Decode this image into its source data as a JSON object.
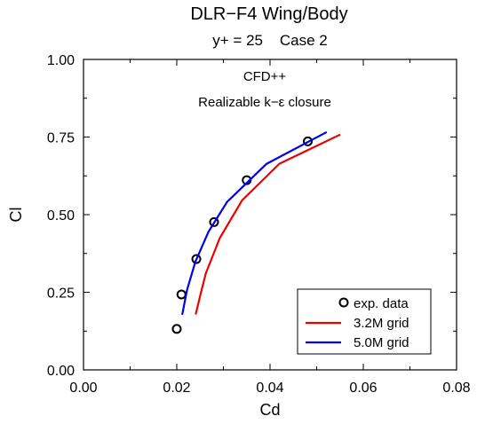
{
  "chart_data": {
    "type": "line",
    "title": "DLR−F4 Wing/Body",
    "subtitle": "y+ = 25    Case 2",
    "annotations": [
      "CFD++",
      "Realizable k−ε closure"
    ],
    "xlabel": "Cd",
    "ylabel": "Cl",
    "xlim": [
      0.0,
      0.08
    ],
    "ylim": [
      0.0,
      1.0
    ],
    "x_ticks": [
      "0.00",
      "0.02",
      "0.04",
      "0.06",
      "0.08"
    ],
    "y_ticks": [
      "0.00",
      "0.25",
      "0.50",
      "0.75",
      "1.00"
    ],
    "grid": false,
    "legend": "bottom-right",
    "series": [
      {
        "name": "exp. data",
        "style": "markers",
        "color": "#000000",
        "x": [
          0.02,
          0.021,
          0.0242,
          0.028,
          0.035,
          0.0481
        ],
        "y": [
          0.132,
          0.243,
          0.357,
          0.476,
          0.611,
          0.736
        ]
      },
      {
        "name": "3.2M grid",
        "style": "line",
        "color": "#ee0000",
        "x": [
          0.0241,
          0.0251,
          0.0262,
          0.0292,
          0.034,
          0.042,
          0.0549
        ],
        "y": [
          0.181,
          0.244,
          0.31,
          0.424,
          0.546,
          0.664,
          0.757
        ]
      },
      {
        "name": "5.0M grid",
        "style": "line",
        "color": "#0000ee",
        "x": [
          0.0212,
          0.0222,
          0.024,
          0.0268,
          0.0308,
          0.0392,
          0.052
        ],
        "y": [
          0.18,
          0.258,
          0.349,
          0.445,
          0.541,
          0.663,
          0.765
        ]
      }
    ]
  }
}
